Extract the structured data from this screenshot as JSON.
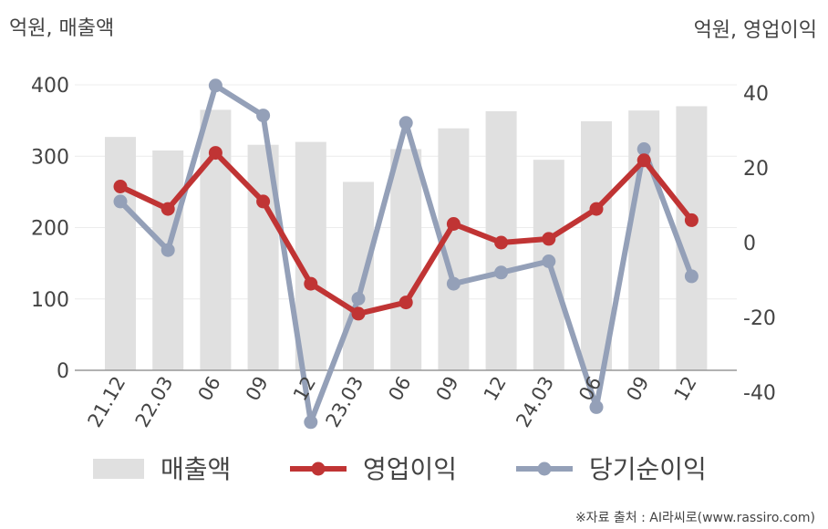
{
  "chart_data": {
    "type": "bar",
    "categories": [
      "21.12",
      "22.03",
      "06",
      "09",
      "12",
      "23.03",
      "06",
      "09",
      "12",
      "24.03",
      "06",
      "09",
      "12"
    ],
    "y_left_label": "억원, 매출액",
    "y_right_label": "억원, 영업이익",
    "y_left_range": [
      0,
      400
    ],
    "y_left_ticks": [
      "0",
      "100",
      "200",
      "300",
      "400"
    ],
    "y_right_range": [
      -55,
      45
    ],
    "y_right_ticks": [
      "-40",
      "-20",
      "0",
      "20",
      "40"
    ],
    "grid": true,
    "legend_position": "bottom",
    "series": [
      {
        "name": "매출액",
        "kind": "bar",
        "axis": "left",
        "color": "#e0e0e0",
        "values": [
          327,
          308,
          365,
          316,
          320,
          264,
          310,
          339,
          363,
          295,
          349,
          364,
          370
        ]
      },
      {
        "name": "영업이익",
        "kind": "line",
        "axis": "right",
        "color": "#c03434",
        "values": [
          15,
          9,
          24,
          11,
          -11,
          -19,
          -16,
          5,
          0,
          1,
          9,
          22,
          6
        ]
      },
      {
        "name": "당기순이익",
        "kind": "line",
        "axis": "right",
        "color": "#94a0b8",
        "values": [
          11,
          -2,
          42,
          34,
          -48,
          -15,
          32,
          -11,
          -8,
          -5,
          -44,
          25,
          -9
        ]
      }
    ]
  },
  "source": "※자료 출처 : AI라씨로(www.rassiro.com)"
}
